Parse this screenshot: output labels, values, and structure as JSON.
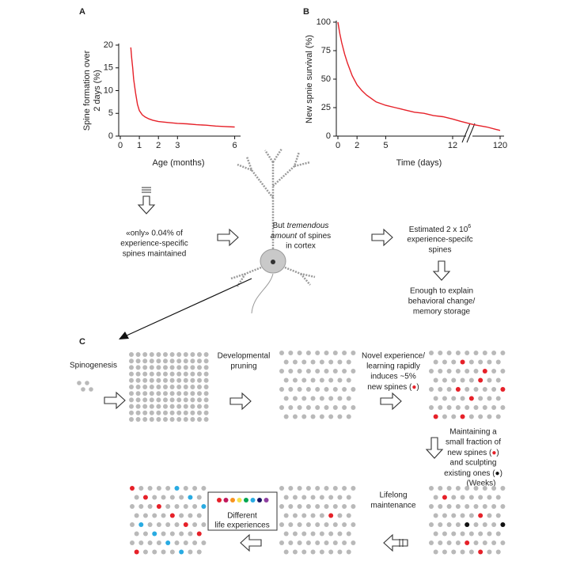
{
  "chart_data": [
    {
      "type": "line",
      "panel_label": "A",
      "ylabel": [
        "Spine formation over",
        "2 days (%)"
      ],
      "xlabel": "Age (months)",
      "x": [
        0.55,
        0.6,
        0.65,
        0.7,
        0.8,
        0.9,
        1.0,
        1.15,
        1.3,
        1.5,
        1.7,
        2.0,
        2.5,
        3.0,
        3.5,
        4.0,
        4.5,
        5.0,
        5.5,
        6.0
      ],
      "values": [
        19.5,
        17,
        15,
        12.5,
        9.5,
        7,
        5.6,
        4.7,
        4.2,
        3.8,
        3.5,
        3.2,
        3.0,
        2.8,
        2.7,
        2.5,
        2.4,
        2.2,
        2.1,
        2.0
      ],
      "color": "#e62129",
      "xlim": [
        0,
        6.1
      ],
      "xticks": [
        0,
        1,
        2,
        3,
        6
      ],
      "ylim": [
        0,
        20
      ],
      "yticks": [
        0,
        5,
        10,
        15,
        20
      ]
    },
    {
      "type": "line",
      "panel_label": "B",
      "ylabel": "New spnie survival (%)",
      "xlabel": "Time (days)",
      "x": [
        0,
        0.2,
        0.4,
        0.7,
        1,
        1.5,
        2,
        2.5,
        3,
        4,
        5,
        6,
        7,
        8,
        9,
        10,
        11,
        12,
        30,
        60,
        90,
        110,
        120
      ],
      "values": [
        100,
        90,
        82,
        72,
        64,
        53,
        45,
        40,
        36,
        30,
        27,
        25,
        23,
        21,
        20,
        18,
        17,
        15,
        13,
        10,
        8,
        6,
        5
      ],
      "color": "#e62129",
      "xlim": [
        0,
        120
      ],
      "xticks": [
        0,
        2,
        5,
        12,
        120
      ],
      "ylim": [
        0,
        100
      ],
      "yticks": [
        0,
        25,
        50,
        75,
        100
      ],
      "axis_break": true
    }
  ],
  "diagram": {
    "only_text": [
      "«only» 0.04% of",
      "experience-specific",
      "spines maintained"
    ],
    "tremendous_text": [
      "But",
      "tremendous",
      "amount",
      "of spines",
      "in cortex"
    ],
    "estimated_text": {
      "base": "Estimated 2 x 10",
      "exponent": "6",
      "lines": [
        "experience-specifc",
        "spines"
      ]
    },
    "enough_text": [
      "Enough to explain",
      "behavioral change/",
      "memory storage"
    ],
    "panel_c_label": "C",
    "spinogenesis": "Spinogenesis",
    "pruning": [
      "Developmental",
      "pruning"
    ],
    "novel": {
      "lines": [
        "Novel experience/",
        "learning rapidly",
        "induces ~5%"
      ],
      "last": [
        "new spines (",
        "●",
        ")"
      ]
    },
    "maintaining": {
      "lines": [
        "Maintaining a",
        "small fraction of"
      ],
      "new": [
        "new spines (",
        "●",
        ")"
      ],
      "sculpt": "and sculpting",
      "existing": [
        "existing ones (",
        "●",
        ")"
      ],
      "weeks": "(Weeks)"
    },
    "lifelong": [
      "Lifelong",
      "maintenance"
    ],
    "different": [
      "Different",
      "life experiences"
    ]
  }
}
